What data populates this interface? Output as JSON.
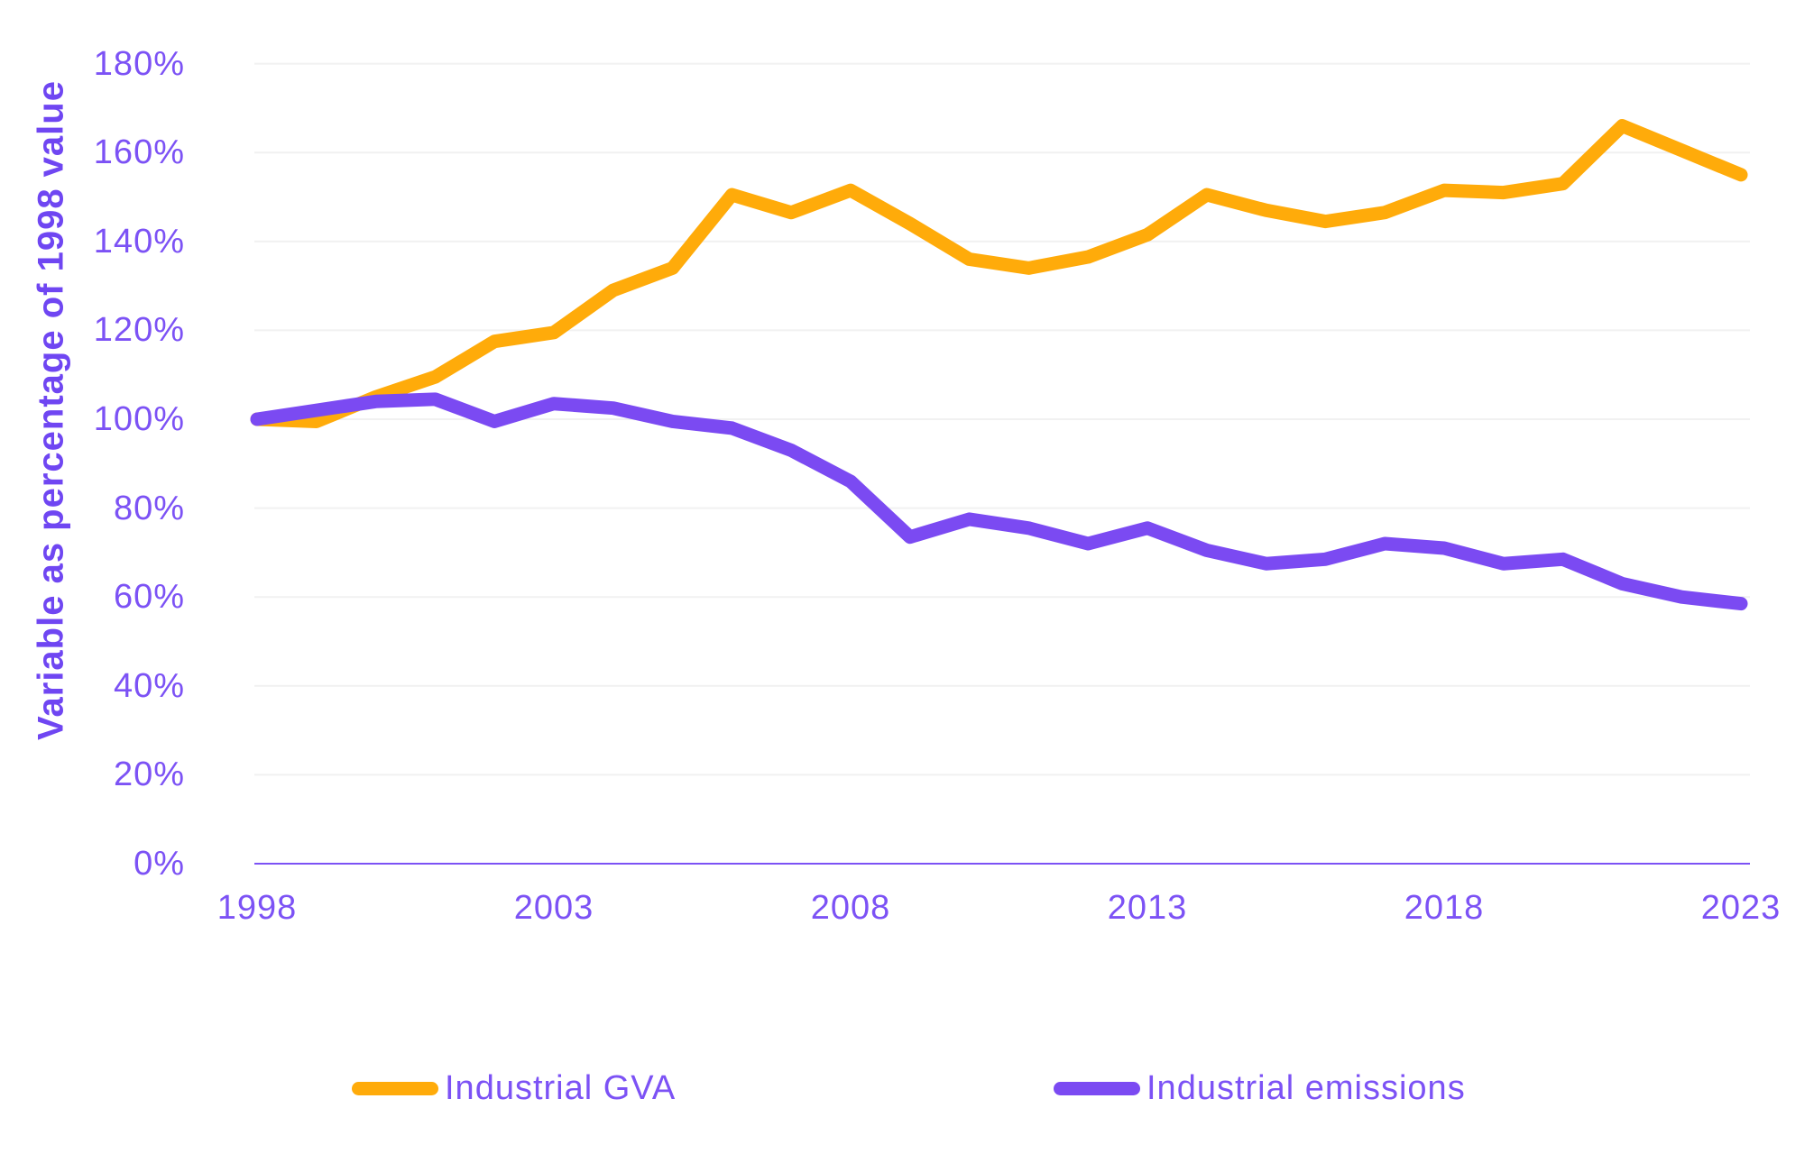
{
  "chart_data": {
    "type": "line",
    "title": "",
    "ylabel": "Variable as percentage of 1998 value",
    "xlabel": "",
    "x": [
      1998,
      1999,
      2000,
      2001,
      2002,
      2003,
      2004,
      2005,
      2006,
      2007,
      2008,
      2009,
      2010,
      2011,
      2012,
      2013,
      2014,
      2015,
      2016,
      2017,
      2018,
      2019,
      2020,
      2021,
      2022,
      2023
    ],
    "series": [
      {
        "name": "Industrial GVA",
        "color": "#FFAB0A",
        "values": [
          100,
          99.5,
          105,
          109.5,
          117.5,
          119.5,
          129,
          134,
          150.5,
          146.5,
          151.5,
          144,
          136,
          134,
          136.5,
          141.5,
          150.5,
          147,
          144.5,
          146.5,
          151.5,
          151,
          153,
          166,
          160.5,
          155
        ]
      },
      {
        "name": "Industrial emissions",
        "color": "#7B4AF2",
        "values": [
          100,
          102,
          104,
          104.5,
          99.5,
          103.5,
          102.5,
          99.5,
          98,
          93,
          86,
          73.5,
          77.5,
          75.5,
          72,
          75.5,
          70.5,
          67.5,
          68.5,
          72,
          71,
          67.5,
          68.5,
          63,
          60,
          58.5
        ]
      }
    ],
    "y_ticks": [
      {
        "value": 0,
        "label": "0%"
      },
      {
        "value": 20,
        "label": "20%"
      },
      {
        "value": 40,
        "label": "40%"
      },
      {
        "value": 60,
        "label": "60%"
      },
      {
        "value": 80,
        "label": "80%"
      },
      {
        "value": 100,
        "label": "100%"
      },
      {
        "value": 120,
        "label": "120%"
      },
      {
        "value": 140,
        "label": "140%"
      },
      {
        "value": 160,
        "label": "160%"
      },
      {
        "value": 180,
        "label": "180%"
      }
    ],
    "x_ticks": [
      {
        "value": 1998,
        "label": "1998"
      },
      {
        "value": 2003,
        "label": "2003"
      },
      {
        "value": 2008,
        "label": "2008"
      },
      {
        "value": 2013,
        "label": "2013"
      },
      {
        "value": 2018,
        "label": "2018"
      },
      {
        "value": 2023,
        "label": "2023"
      }
    ],
    "ylim": [
      0,
      180
    ],
    "grid": "horizontal",
    "legend_position": "bottom"
  },
  "colors": {
    "background": "#ffffff",
    "gridline": "#F1F1F1",
    "axis_line": "#7C52F5",
    "tick_text": "#7C52F5",
    "axis_title_text": "#6F46F2",
    "gva_line": "#FFAB0A",
    "emissions_line": "#7B4AF2"
  }
}
